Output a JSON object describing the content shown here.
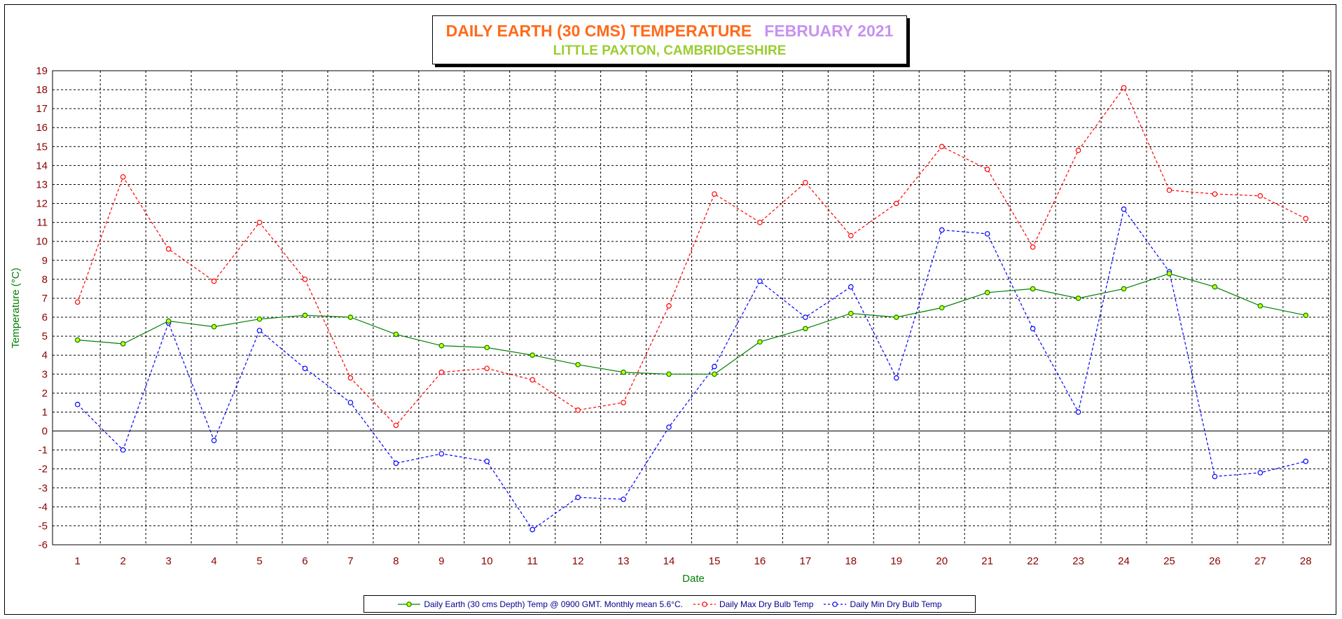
{
  "chart_data": {
    "type": "line",
    "title": "DAILY EARTH (30 CMS) TEMPERATURE",
    "title_period": "FEBRUARY 2021",
    "subtitle": "LITTLE PAXTON, CAMBRIDGESHIRE",
    "xlabel": "Date",
    "ylabel": "Temperature (°C)",
    "ylim": [
      -6,
      19
    ],
    "grid": true,
    "legend_position": "bottom",
    "x": [
      1,
      2,
      3,
      4,
      5,
      6,
      7,
      8,
      9,
      10,
      11,
      12,
      13,
      14,
      15,
      16,
      17,
      18,
      19,
      20,
      21,
      22,
      23,
      24,
      25,
      26,
      27,
      28
    ],
    "y_ticks": [
      19,
      18,
      17,
      16,
      15,
      14,
      13,
      12,
      11,
      10,
      9,
      8,
      7,
      6,
      5,
      4,
      3,
      2,
      1,
      0,
      -1,
      -2,
      -3,
      -4,
      -5,
      -6
    ],
    "series": [
      {
        "name": "Daily Earth (30 cms Depth) Temp @ 0900 GMT. Monthly mean 5.6°C.",
        "color": "#008000",
        "marker_fill": "#ccff00",
        "line_style": "solid",
        "values": [
          4.8,
          4.6,
          5.8,
          5.5,
          5.9,
          6.1,
          6.0,
          5.1,
          4.5,
          4.4,
          4.0,
          3.5,
          3.1,
          3.0,
          3.0,
          4.7,
          5.4,
          6.2,
          6.0,
          6.5,
          7.3,
          7.5,
          7.0,
          7.5,
          8.3,
          7.6,
          6.6,
          6.1
        ]
      },
      {
        "name": "Daily Max Dry Bulb Temp",
        "color": "#ff0000",
        "marker_fill": "#ffffff",
        "line_style": "dashed",
        "values": [
          6.8,
          13.4,
          9.6,
          7.9,
          11.0,
          8.0,
          2.8,
          0.3,
          3.1,
          3.3,
          2.7,
          1.1,
          1.5,
          6.6,
          12.5,
          11.0,
          13.1,
          10.3,
          12.0,
          15.0,
          13.8,
          9.7,
          14.8,
          18.1,
          12.7,
          12.5,
          12.4,
          11.2
        ]
      },
      {
        "name": "Daily Min Dry Bulb Temp",
        "color": "#0000ff",
        "marker_fill": "#ffffff",
        "line_style": "dashed",
        "values": [
          1.4,
          -1.0,
          5.7,
          -0.5,
          5.3,
          3.3,
          1.5,
          -1.7,
          -1.2,
          -1.6,
          -5.2,
          -3.5,
          -3.6,
          0.2,
          3.4,
          7.9,
          6.0,
          7.6,
          2.8,
          10.6,
          10.4,
          5.4,
          1.0,
          11.7,
          8.4,
          -2.4,
          -2.2,
          -1.6
        ]
      }
    ]
  }
}
